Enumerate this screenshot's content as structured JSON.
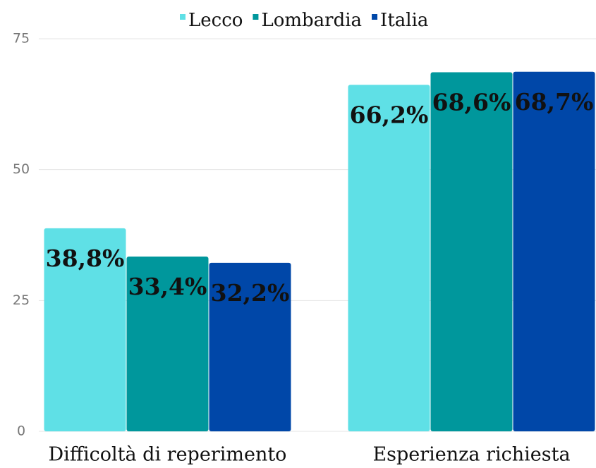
{
  "chart_data": {
    "type": "bar",
    "categories": [
      "Difficoltà di reperimento",
      "Esperienza richiesta"
    ],
    "series": [
      {
        "name": "Lecco",
        "color": "#5fe0e6",
        "values": [
          38.8,
          66.2
        ],
        "value_labels": [
          "38,8%",
          "66,2%"
        ]
      },
      {
        "name": "Lombardia",
        "color": "#00979c",
        "values": [
          33.4,
          68.6
        ],
        "value_labels": [
          "33,4%",
          "68,6%"
        ]
      },
      {
        "name": "Italia",
        "color": "#0047a8",
        "values": [
          32.2,
          68.7
        ],
        "value_labels": [
          "32,2%",
          "68,7%"
        ]
      }
    ],
    "ylim": [
      0,
      75
    ],
    "yticks": [
      0,
      25,
      50,
      75
    ],
    "grid": true,
    "legend": "top"
  }
}
